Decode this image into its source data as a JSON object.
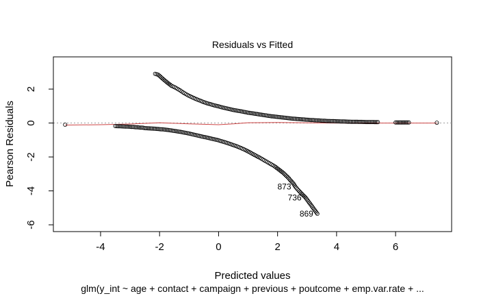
{
  "chart_data": {
    "type": "scatter",
    "title": "Residuals vs Fitted",
    "xlabel": "Predicted values",
    "ylabel": "Pearson Residuals",
    "subtitle": "glm(y_int ~ age + contact + campaign + previous + poutcome + emp.var.rate + ...",
    "xlim": [
      -5.6,
      7.9
    ],
    "ylim": [
      -6.4,
      3.9
    ],
    "x_ticks": [
      -4,
      -2,
      0,
      2,
      4,
      6
    ],
    "y_ticks": [
      -6,
      -4,
      -2,
      0,
      2
    ],
    "reference_line": {
      "y": 0,
      "style": "dotted",
      "color": "#999999"
    },
    "smooth_color": "#cc4444",
    "smooth": [
      {
        "x": -5.2,
        "y": -0.12
      },
      {
        "x": -4.0,
        "y": -0.1
      },
      {
        "x": -3.0,
        "y": -0.06
      },
      {
        "x": -2.0,
        "y": 0.02
      },
      {
        "x": -1.0,
        "y": -0.05
      },
      {
        "x": 0.0,
        "y": -0.1
      },
      {
        "x": 0.5,
        "y": -0.05
      },
      {
        "x": 1.0,
        "y": 0.02
      },
      {
        "x": 2.0,
        "y": 0.03
      },
      {
        "x": 3.0,
        "y": 0.01
      },
      {
        "x": 4.0,
        "y": 0.0
      },
      {
        "x": 5.5,
        "y": 0.0
      },
      {
        "x": 7.4,
        "y": 0.0
      }
    ],
    "upper_branch": [
      [
        -2.15,
        2.9
      ],
      [
        -2.05,
        2.85
      ],
      [
        -1.75,
        2.4
      ],
      [
        -1.6,
        2.2
      ],
      [
        -1.5,
        2.12
      ],
      [
        -1.4,
        2.02
      ],
      [
        -1.3,
        1.92
      ],
      [
        -1.2,
        1.8
      ],
      [
        -1.1,
        1.7
      ],
      [
        -1.0,
        1.6
      ],
      [
        -0.9,
        1.52
      ],
      [
        -0.8,
        1.44
      ],
      [
        -0.7,
        1.37
      ],
      [
        -0.6,
        1.3
      ],
      [
        -0.5,
        1.23
      ],
      [
        -0.4,
        1.17
      ],
      [
        -0.3,
        1.12
      ],
      [
        -0.2,
        1.07
      ],
      [
        -0.1,
        1.02
      ],
      [
        0.0,
        0.98
      ],
      [
        0.1,
        0.93
      ],
      [
        0.2,
        0.89
      ],
      [
        0.3,
        0.85
      ],
      [
        0.4,
        0.81
      ],
      [
        0.5,
        0.77
      ],
      [
        0.6,
        0.74
      ],
      [
        0.7,
        0.71
      ],
      [
        0.85,
        0.66
      ],
      [
        1.0,
        0.61
      ],
      [
        1.15,
        0.57
      ],
      [
        1.3,
        0.53
      ],
      [
        1.45,
        0.49
      ],
      [
        1.6,
        0.45
      ],
      [
        1.75,
        0.41
      ],
      [
        1.9,
        0.38
      ],
      [
        2.05,
        0.35
      ],
      [
        2.2,
        0.32
      ],
      [
        2.35,
        0.29
      ],
      [
        2.5,
        0.26
      ],
      [
        2.65,
        0.24
      ],
      [
        2.8,
        0.22
      ],
      [
        2.95,
        0.2
      ],
      [
        3.1,
        0.18
      ],
      [
        3.3,
        0.16
      ],
      [
        3.5,
        0.14
      ],
      [
        3.7,
        0.12
      ],
      [
        3.9,
        0.11
      ],
      [
        4.1,
        0.1
      ],
      [
        4.4,
        0.08
      ],
      [
        4.7,
        0.07
      ],
      [
        5.0,
        0.06
      ],
      [
        5.2,
        0.06
      ],
      [
        5.4,
        0.05
      ],
      [
        6.0,
        0.03
      ],
      [
        6.2,
        0.03
      ],
      [
        6.45,
        0.03
      ],
      [
        7.4,
        0.02
      ]
    ],
    "lower_branch": [
      [
        -5.2,
        -0.1
      ],
      [
        -3.5,
        -0.18
      ],
      [
        -3.25,
        -0.2
      ],
      [
        -3.0,
        -0.22
      ],
      [
        -2.7,
        -0.26
      ],
      [
        -2.55,
        -0.28
      ],
      [
        -2.5,
        -0.3
      ],
      [
        -2.2,
        -0.33
      ],
      [
        -2.0,
        -0.36
      ],
      [
        -1.8,
        -0.39
      ],
      [
        -1.6,
        -0.44
      ],
      [
        -1.4,
        -0.49
      ],
      [
        -1.2,
        -0.55
      ],
      [
        -1.0,
        -0.62
      ],
      [
        -0.8,
        -0.7
      ],
      [
        -0.6,
        -0.78
      ],
      [
        -0.4,
        -0.86
      ],
      [
        -0.2,
        -0.94
      ],
      [
        0.0,
        -1.02
      ],
      [
        0.15,
        -1.1
      ],
      [
        0.3,
        -1.18
      ],
      [
        0.45,
        -1.27
      ],
      [
        0.6,
        -1.36
      ],
      [
        0.75,
        -1.47
      ],
      [
        0.9,
        -1.58
      ],
      [
        1.4,
        -2.05
      ],
      [
        1.5,
        -2.15
      ],
      [
        1.6,
        -2.25
      ],
      [
        1.75,
        -2.4
      ],
      [
        1.9,
        -2.55
      ],
      [
        2.05,
        -2.75
      ],
      [
        2.2,
        -2.95
      ],
      [
        2.35,
        -3.2
      ],
      [
        2.45,
        -3.4
      ],
      [
        2.55,
        -3.6
      ],
      [
        2.6,
        -3.75
      ],
      [
        2.75,
        -4.05
      ],
      [
        2.95,
        -4.4
      ],
      [
        3.35,
        -5.35
      ]
    ],
    "point_labels": [
      {
        "text": "873",
        "x": 2.6,
        "y": -3.75
      },
      {
        "text": "736",
        "x": 2.95,
        "y": -4.4
      },
      {
        "text": "869",
        "x": 3.35,
        "y": -5.35
      }
    ]
  }
}
